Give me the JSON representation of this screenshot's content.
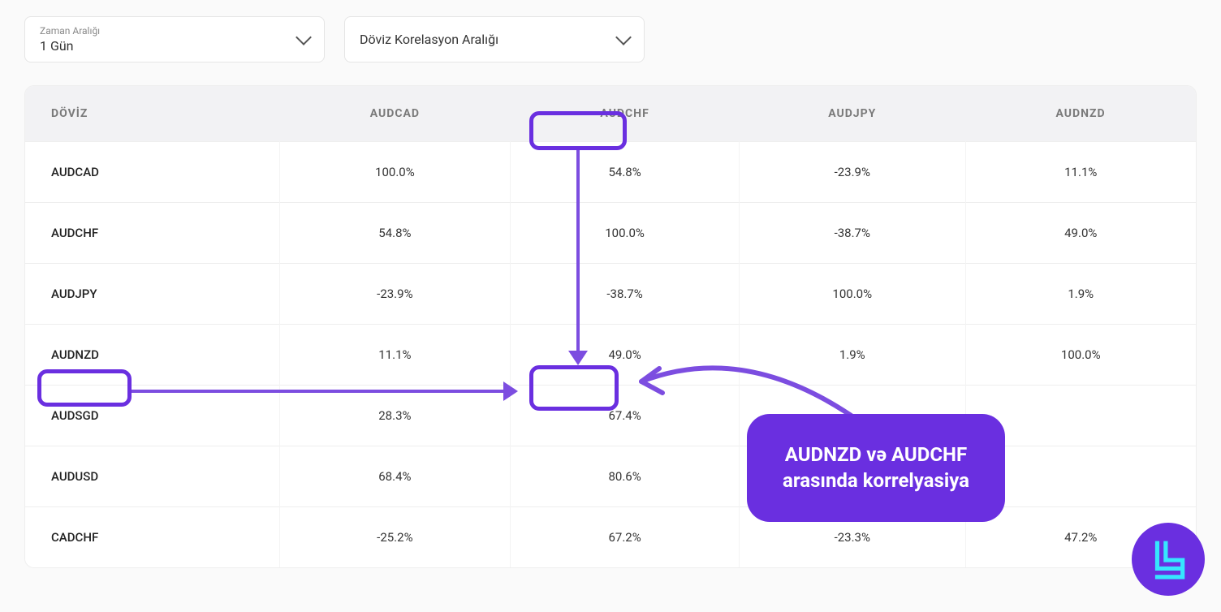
{
  "filters": {
    "time": {
      "label": "Zaman Aralığı",
      "value": "1 Gün"
    },
    "correlation": {
      "label": "Döviz Korelasyon Aralığı"
    }
  },
  "table": {
    "row_header_title": "DÖVİZ",
    "columns": [
      "AUDCAD",
      "AUDCHF",
      "AUDJPY",
      "AUDNZD"
    ],
    "rows": [
      {
        "name": "AUDCAD",
        "cells": [
          "100.0%",
          "54.8%",
          "-23.9%",
          "11.1%"
        ]
      },
      {
        "name": "AUDCHF",
        "cells": [
          "54.8%",
          "100.0%",
          "-38.7%",
          "49.0%"
        ]
      },
      {
        "name": "AUDJPY",
        "cells": [
          "-23.9%",
          "-38.7%",
          "100.0%",
          "1.9%"
        ]
      },
      {
        "name": "AUDNZD",
        "cells": [
          "11.1%",
          "49.0%",
          "1.9%",
          "100.0%"
        ]
      },
      {
        "name": "AUDSGD",
        "cells": [
          "28.3%",
          "67.4%",
          "",
          ""
        ]
      },
      {
        "name": "AUDUSD",
        "cells": [
          "68.4%",
          "80.6%",
          "",
          ""
        ]
      },
      {
        "name": "CADCHF",
        "cells": [
          "-25.2%",
          "67.2%",
          "-23.3%",
          "47.2%"
        ]
      }
    ]
  },
  "annotation": {
    "callout_text": "AUDNZD və AUDCHF\narasında korrelyasiya",
    "highlight_color": "#6a2fe0",
    "arrow_color": "#7c4de0",
    "callout_bg": "#6a2fe0",
    "callout_text_color": "#ffffff",
    "logo_bg": "#6a2fe0",
    "logo_stroke": "#36e6ff"
  }
}
